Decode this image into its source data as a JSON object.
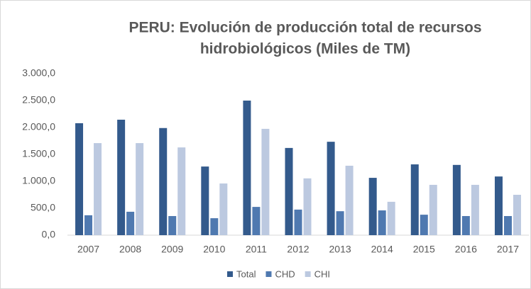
{
  "chart_data": {
    "type": "bar",
    "title": [
      "PERU: Evolución de producción total de recursos",
      "hidrobiológicos (Miles de TM)"
    ],
    "categories": [
      "2007",
      "2008",
      "2009",
      "2010",
      "2011",
      "2012",
      "2013",
      "2014",
      "2015",
      "2016",
      "2017"
    ],
    "series": [
      {
        "name": "Total",
        "color": "#335a8c",
        "values": [
          2080,
          2145,
          1990,
          1275,
          2500,
          1620,
          1735,
          1065,
          1315,
          1305,
          1090
        ]
      },
      {
        "name": "CHD",
        "color": "#4f79b0",
        "values": [
          370,
          435,
          355,
          315,
          525,
          475,
          445,
          460,
          380,
          355,
          355
        ]
      },
      {
        "name": "CHI",
        "color": "#bcc9e0",
        "values": [
          1710,
          1710,
          1630,
          960,
          1975,
          1055,
          1290,
          620,
          935,
          935,
          750
        ]
      }
    ],
    "ylim": [
      0,
      3000
    ],
    "yticks": [
      {
        "value": 0,
        "label": "0,0"
      },
      {
        "value": 500,
        "label": "500,0"
      },
      {
        "value": 1000,
        "label": "1.000,0"
      },
      {
        "value": 1500,
        "label": "1.500,0"
      },
      {
        "value": 2000,
        "label": "2.000,0"
      },
      {
        "value": 2500,
        "label": "2.500,0"
      },
      {
        "value": 3000,
        "label": "3.000,0"
      }
    ],
    "grid": false,
    "legend": "bottom"
  }
}
